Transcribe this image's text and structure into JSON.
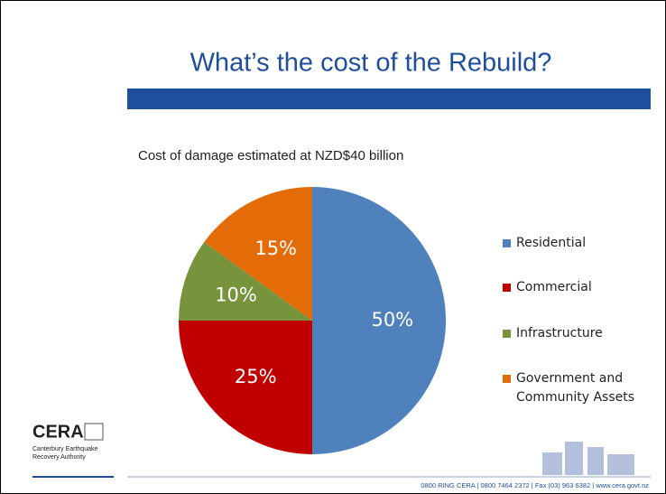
{
  "chart_data": {
    "type": "pie",
    "title": "What’s the cost of the Rebuild?",
    "subtitle": "Cost of damage estimated at NZD$40 billion",
    "categories": [
      "Residential",
      "Commercial",
      "Infrastructure",
      "Government and Community Assets"
    ],
    "values": [
      50,
      25,
      10,
      15
    ],
    "value_labels": [
      "50%",
      "25%",
      "10%",
      "15%"
    ],
    "colors": [
      "#4f81bd",
      "#c00000",
      "#77933c",
      "#e36c09"
    ],
    "legend": "right"
  },
  "logo": {
    "name": "CERA",
    "lines": [
      "Canterbury Earthquake",
      "Recovery Authority"
    ]
  },
  "footer": "0800 RING CERA  |  0800 7464 2372  |  Fax (03) 963 6382  |  www.cera.govt.nz"
}
